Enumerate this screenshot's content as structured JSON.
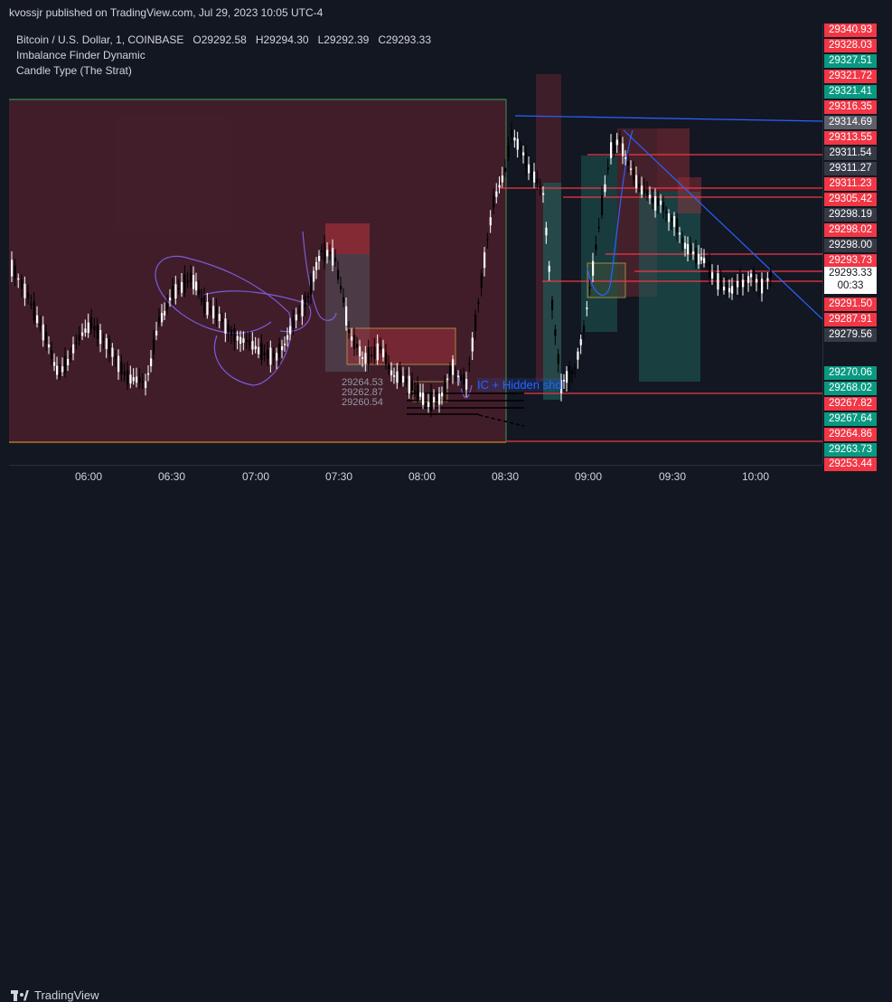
{
  "header": {
    "published": "kvossjr published on TradingView.com, Jul 29, 2023 10:05 UTC-4"
  },
  "legend": {
    "symbol": "Bitcoin / U.S. Dollar, 1, COINBASE",
    "open": "O29292.58",
    "high": "H29294.30",
    "low": "L29292.39",
    "close": "C29293.33",
    "indicator1": "Imbalance Finder Dynamic",
    "indicator2": "Candle Type (The Strat)"
  },
  "price_axis": [
    {
      "text": "29340.93",
      "color": "#f23645"
    },
    {
      "text": "29328.03",
      "color": "#f23645"
    },
    {
      "text": "29327.51",
      "color": "#089981"
    },
    {
      "text": "29321.72",
      "color": "#f23645"
    },
    {
      "text": "29321.41",
      "color": "#089981"
    },
    {
      "text": "29316.35",
      "color": "#f23645"
    },
    {
      "text": "29314.69",
      "color": "#5d606b"
    },
    {
      "text": "29313.55",
      "color": "#f23645"
    },
    {
      "text": "29311.54",
      "color": "#363a45"
    },
    {
      "text": "29311.27",
      "color": "#363a45"
    },
    {
      "text": "29311.23",
      "color": "#f23645"
    },
    {
      "text": "29305.42",
      "color": "#f23645"
    },
    {
      "text": "29298.19",
      "color": "#363a45"
    },
    {
      "text": "29298.02",
      "color": "#f23645"
    },
    {
      "text": "29298.00",
      "color": "#363a45"
    },
    {
      "text": "29293.73",
      "color": "#f23645"
    },
    {
      "text": "29291.50",
      "color": "#f23645"
    },
    {
      "text": "29287.91",
      "color": "#f23645"
    },
    {
      "text": "29279.56",
      "color": "#363a45"
    },
    {
      "text": "29270.06",
      "color": "#089981"
    },
    {
      "text": "29268.02",
      "color": "#089981"
    },
    {
      "text": "29267.82",
      "color": "#f23645"
    },
    {
      "text": "29267.64",
      "color": "#089981"
    },
    {
      "text": "29264.86",
      "color": "#f23645"
    },
    {
      "text": "29263.73",
      "color": "#089981"
    },
    {
      "text": "29253.44",
      "color": "#f23645"
    }
  ],
  "current_price": {
    "price": "29293.33",
    "countdown": "00:33"
  },
  "time_axis": [
    "06:00",
    "06:30",
    "07:00",
    "07:30",
    "08:00",
    "08:30",
    "09:00",
    "09:30",
    "10:00"
  ],
  "annotations": {
    "divergence": "IC + Hidden shd",
    "levels": [
      "29264.53",
      "29262.87",
      "29260.54"
    ]
  },
  "footer": {
    "brand": "TradingView"
  }
}
